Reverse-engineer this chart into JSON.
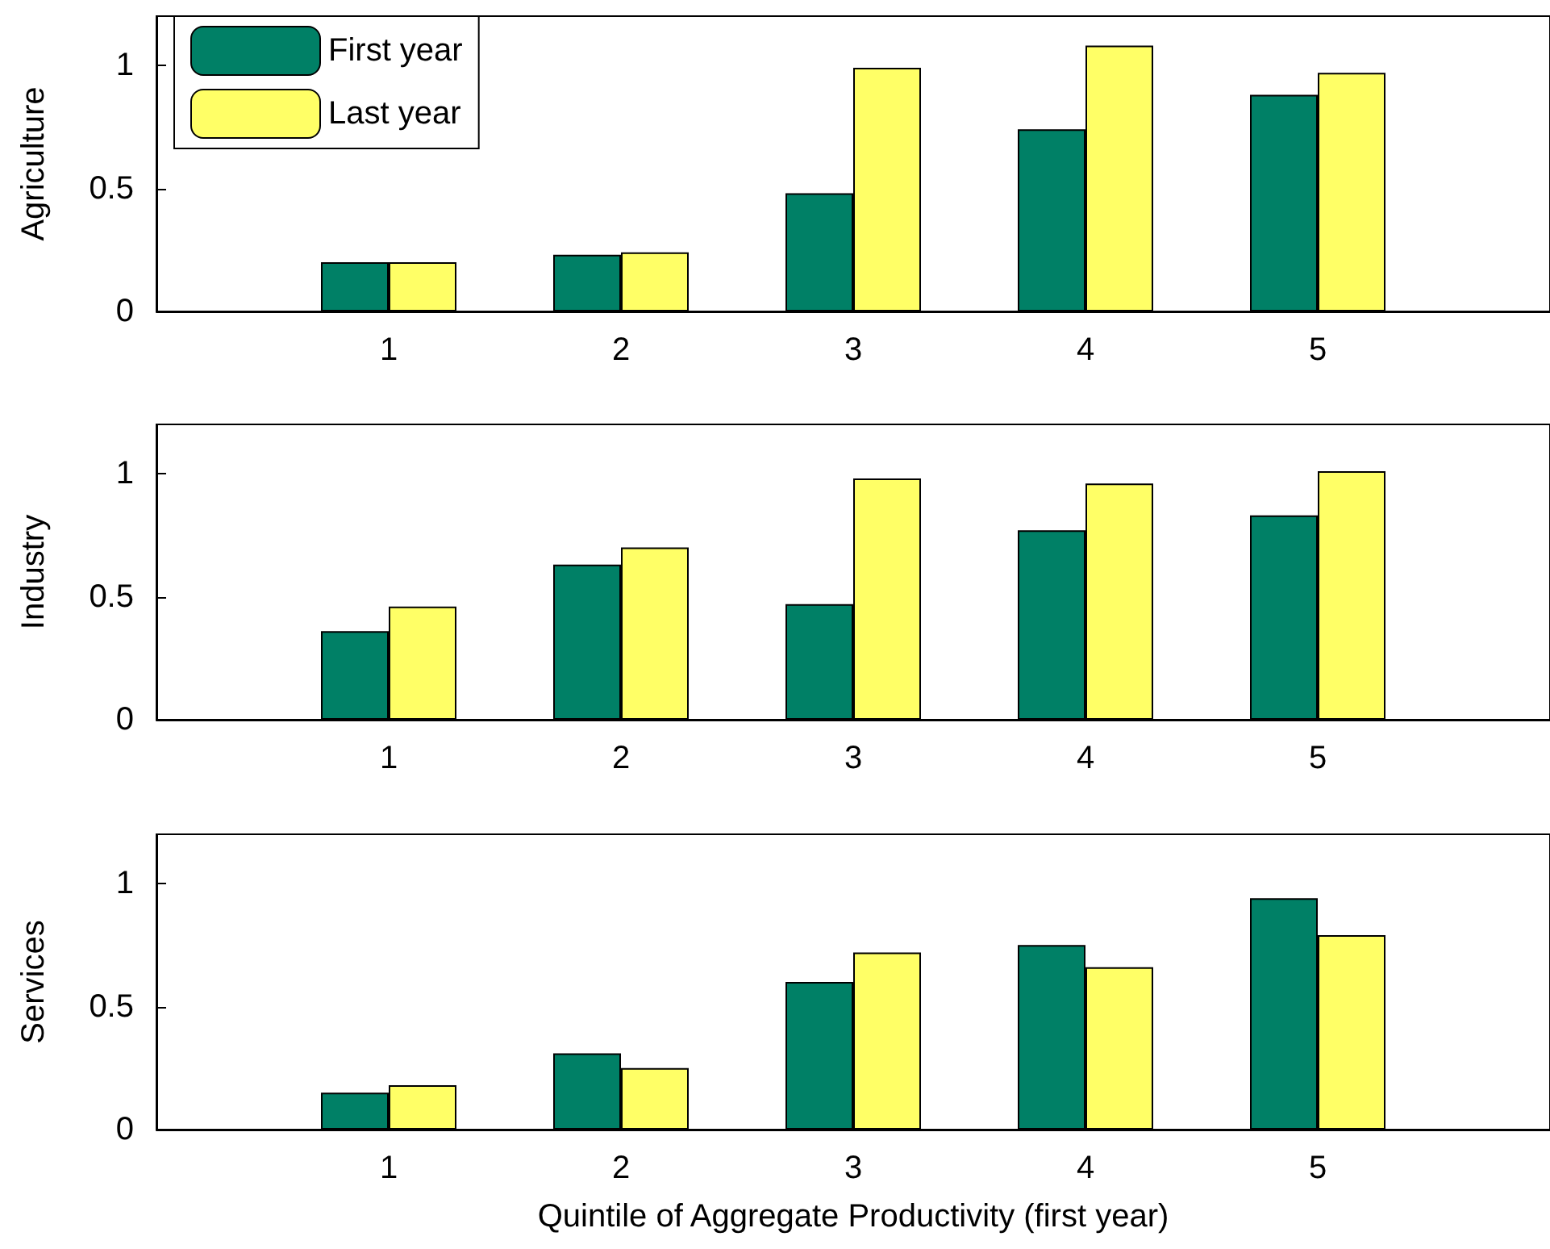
{
  "chart_data": [
    {
      "type": "bar",
      "ylabel": "Agriculture",
      "x": [
        1,
        2,
        3,
        4,
        5
      ],
      "xlim": [
        0,
        6
      ],
      "xticks": [
        1,
        2,
        3,
        4,
        5
      ],
      "ylim": [
        0,
        1.2
      ],
      "yticks": [
        0,
        0.5,
        1
      ],
      "legend": "top left",
      "grid": false,
      "series": [
        {
          "name": "First year",
          "color": "#008066",
          "values": [
            0.2,
            0.23,
            0.48,
            0.74,
            0.88
          ]
        },
        {
          "name": "Last year",
          "color": "#ffff66",
          "values": [
            0.2,
            0.24,
            0.99,
            1.08,
            0.97
          ]
        }
      ]
    },
    {
      "type": "bar",
      "ylabel": "Industry",
      "x": [
        1,
        2,
        3,
        4,
        5
      ],
      "xlim": [
        0,
        6
      ],
      "xticks": [
        1,
        2,
        3,
        4,
        5
      ],
      "ylim": [
        0,
        1.2
      ],
      "yticks": [
        0,
        0.5,
        1
      ],
      "grid": false,
      "series": [
        {
          "color": "#008066",
          "values": [
            0.36,
            0.63,
            0.47,
            0.77,
            0.83
          ]
        },
        {
          "color": "#ffff66",
          "values": [
            0.46,
            0.7,
            0.98,
            0.96,
            1.01
          ]
        }
      ]
    },
    {
      "type": "bar",
      "ylabel": "Services",
      "xlabel": "Quintile of Aggregate Productivity (first year)",
      "x": [
        1,
        2,
        3,
        4,
        5
      ],
      "xlim": [
        0,
        6
      ],
      "xticks": [
        1,
        2,
        3,
        4,
        5
      ],
      "ylim": [
        0,
        1.2
      ],
      "yticks": [
        0,
        0.5,
        1
      ],
      "grid": false,
      "series": [
        {
          "color": "#008066",
          "values": [
            0.15,
            0.31,
            0.6,
            0.75,
            0.94
          ]
        },
        {
          "color": "#ffff66",
          "values": [
            0.18,
            0.25,
            0.72,
            0.66,
            0.79
          ]
        }
      ]
    }
  ]
}
